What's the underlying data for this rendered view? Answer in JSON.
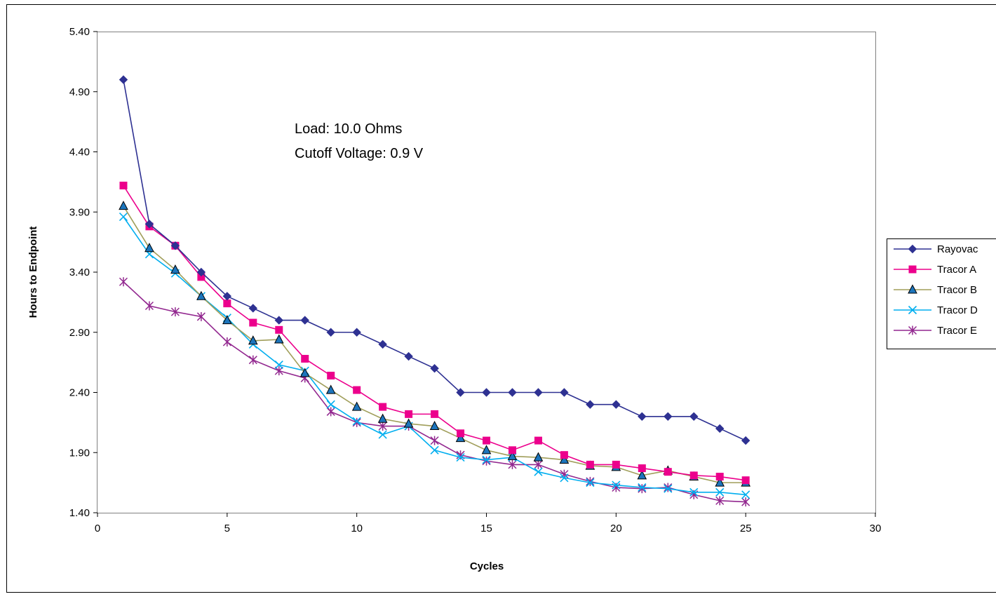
{
  "chart_data": {
    "type": "line",
    "title": "",
    "xlabel": "Cycles",
    "ylabel": "Hours to Endpoint",
    "xlim": [
      0,
      30
    ],
    "ylim": [
      1.4,
      5.4
    ],
    "x_ticks": [
      0,
      5,
      10,
      15,
      20,
      25,
      30
    ],
    "x_tick_labels": [
      "0",
      "5",
      "10",
      "15",
      "20",
      "25",
      "30"
    ],
    "y_ticks": [
      1.4,
      1.9,
      2.4,
      2.9,
      3.4,
      3.9,
      4.4,
      4.9,
      5.4
    ],
    "y_tick_labels": [
      "1.40",
      "1.90",
      "2.40",
      "2.90",
      "3.40",
      "3.90",
      "4.40",
      "4.90",
      "5.40"
    ],
    "grid": false,
    "legend_position": "right",
    "annotations": [
      "Load: 10.0 Ohms",
      "Cutoff Voltage: 0.9 V"
    ],
    "x": [
      1,
      2,
      3,
      4,
      5,
      6,
      7,
      8,
      9,
      10,
      11,
      12,
      13,
      14,
      15,
      16,
      17,
      18,
      19,
      20,
      21,
      22,
      23,
      24,
      25
    ],
    "series": [
      {
        "name": "Rayovac",
        "color": "#2E3192",
        "marker": "diamond",
        "line": true,
        "values": [
          5.0,
          3.8,
          3.62,
          3.4,
          3.2,
          3.1,
          3.0,
          3.0,
          2.9,
          2.9,
          2.8,
          2.7,
          2.6,
          2.4,
          2.4,
          2.4,
          2.4,
          2.4,
          2.3,
          2.3,
          2.2,
          2.2,
          2.2,
          2.1,
          2.0
        ]
      },
      {
        "name": "Tracor A",
        "color": "#EC008C",
        "marker": "square",
        "line": true,
        "values": [
          4.12,
          3.78,
          3.62,
          3.36,
          3.14,
          2.98,
          2.92,
          2.68,
          2.54,
          2.42,
          2.28,
          2.22,
          2.22,
          2.06,
          2.0,
          1.92,
          2.0,
          1.88,
          1.8,
          1.8,
          1.77,
          1.74,
          1.71,
          1.7,
          1.67
        ]
      },
      {
        "name": "Tracor B",
        "color": "#A09E5A",
        "marker_color": "#1C75BC",
        "marker": "triangle",
        "line": true,
        "values": [
          3.95,
          3.6,
          3.42,
          3.2,
          3.0,
          2.83,
          2.84,
          2.56,
          2.42,
          2.28,
          2.18,
          2.14,
          2.12,
          2.02,
          1.92,
          1.87,
          1.86,
          1.84,
          1.79,
          1.78,
          1.71,
          1.75,
          1.7,
          1.65,
          1.65
        ]
      },
      {
        "name": "Tracor D",
        "color": "#00AEEF",
        "marker": "x",
        "line": true,
        "values": [
          3.86,
          3.55,
          3.39,
          3.2,
          3.02,
          2.8,
          2.63,
          2.58,
          2.3,
          2.16,
          2.05,
          2.12,
          1.92,
          1.86,
          1.84,
          1.86,
          1.74,
          1.69,
          1.65,
          1.63,
          1.61,
          1.6,
          1.57,
          1.57,
          1.55
        ]
      },
      {
        "name": "Tracor E",
        "color": "#92278F",
        "marker": "star",
        "line": true,
        "values": [
          3.32,
          3.12,
          3.07,
          3.03,
          2.82,
          2.67,
          2.58,
          2.52,
          2.24,
          2.15,
          2.12,
          2.12,
          2.0,
          1.88,
          1.83,
          1.8,
          1.8,
          1.72,
          1.66,
          1.61,
          1.6,
          1.61,
          1.55,
          1.5,
          1.49
        ]
      }
    ]
  }
}
